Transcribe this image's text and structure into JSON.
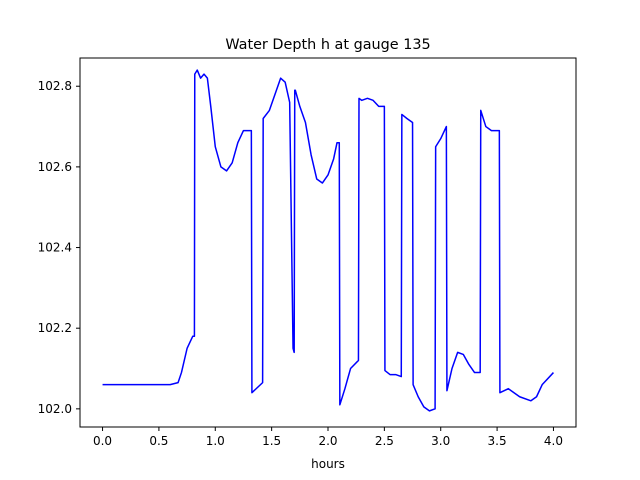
{
  "chart_data": {
    "type": "line",
    "title": "Water Depth h at gauge 135",
    "xlabel": "hours",
    "ylabel": "",
    "xlim": [
      -0.2,
      4.2
    ],
    "ylim": [
      101.955,
      102.87
    ],
    "xticks": [
      0.0,
      0.5,
      1.0,
      1.5,
      2.0,
      2.5,
      3.0,
      3.5,
      4.0
    ],
    "xtick_labels": [
      "0.0",
      "0.5",
      "1.0",
      "1.5",
      "2.0",
      "2.5",
      "3.0",
      "3.5",
      "4.0"
    ],
    "yticks": [
      102.0,
      102.2,
      102.4,
      102.6,
      102.8
    ],
    "ytick_labels": [
      "102.0",
      "102.2",
      "102.4",
      "102.6",
      "102.8"
    ],
    "grid": false,
    "line_color": "#0000ff",
    "series": [
      {
        "x": [
          0.0,
          0.3,
          0.6,
          0.67,
          0.7,
          0.75,
          0.8,
          0.815,
          0.818,
          0.84,
          0.87,
          0.9,
          0.93,
          0.96,
          1.0,
          1.05,
          1.1,
          1.15,
          1.2,
          1.25,
          1.3,
          1.32,
          1.325,
          1.42,
          1.425,
          1.48,
          1.53,
          1.58,
          1.62,
          1.66,
          1.69,
          1.7,
          1.705,
          1.71,
          1.75,
          1.8,
          1.85,
          1.9,
          1.95,
          2.0,
          2.05,
          2.08,
          2.1,
          2.105,
          2.15,
          2.2,
          2.27,
          2.275,
          2.3,
          2.35,
          2.4,
          2.45,
          2.5,
          2.505,
          2.55,
          2.6,
          2.65,
          2.655,
          2.7,
          2.75,
          2.755,
          2.8,
          2.85,
          2.9,
          2.95,
          2.955,
          3.0,
          3.05,
          3.055,
          3.1,
          3.15,
          3.2,
          3.25,
          3.3,
          3.35,
          3.355,
          3.4,
          3.45,
          3.52,
          3.525,
          3.6,
          3.65,
          3.7,
          3.8,
          3.85,
          3.9,
          4.0
        ],
        "y": [
          102.06,
          102.06,
          102.06,
          102.065,
          102.09,
          102.15,
          102.18,
          102.18,
          102.83,
          102.84,
          102.82,
          102.83,
          102.82,
          102.75,
          102.65,
          102.6,
          102.59,
          102.61,
          102.66,
          102.69,
          102.69,
          102.69,
          102.04,
          102.065,
          102.72,
          102.74,
          102.78,
          102.82,
          102.81,
          102.76,
          102.15,
          102.14,
          102.79,
          102.79,
          102.75,
          102.71,
          102.63,
          102.57,
          102.56,
          102.58,
          102.62,
          102.66,
          102.66,
          102.01,
          102.05,
          102.1,
          102.12,
          102.77,
          102.765,
          102.77,
          102.765,
          102.75,
          102.75,
          102.095,
          102.085,
          102.085,
          102.08,
          102.73,
          102.72,
          102.71,
          102.06,
          102.03,
          102.005,
          101.995,
          102.0,
          102.65,
          102.67,
          102.7,
          102.045,
          102.1,
          102.14,
          102.135,
          102.11,
          102.09,
          102.09,
          102.74,
          102.7,
          102.69,
          102.69,
          102.04,
          102.05,
          102.04,
          102.03,
          102.02,
          102.03,
          102.06,
          102.09
        ]
      }
    ]
  }
}
